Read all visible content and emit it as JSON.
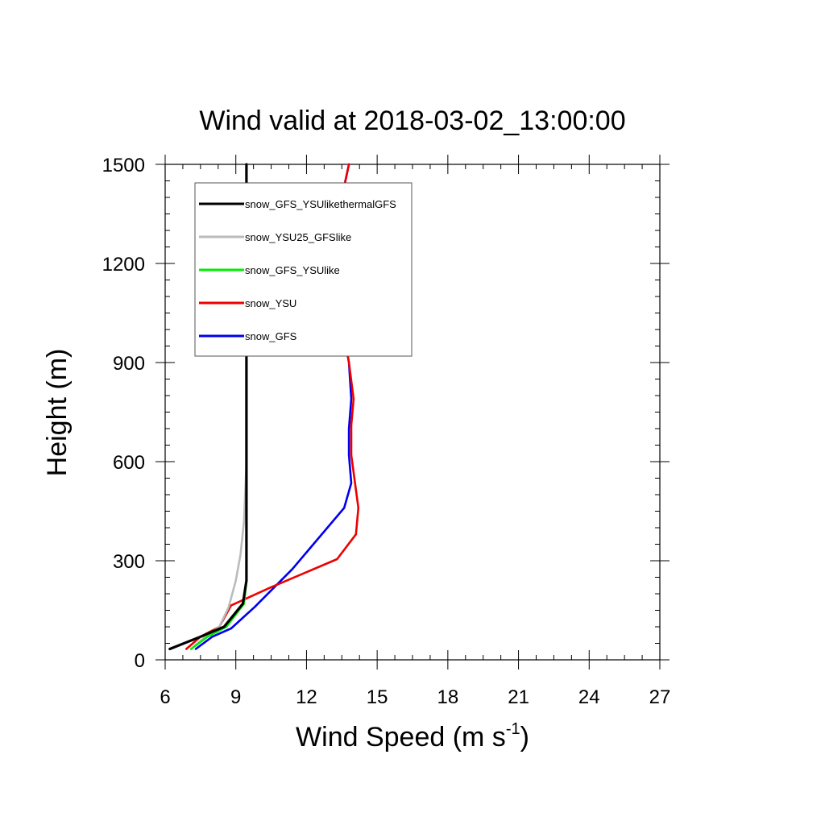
{
  "chart_data": {
    "type": "line",
    "title": "Wind valid at 2018-03-02_13:00:00",
    "xlabel": "Wind Speed (m s",
    "xlabel_sup": "-1",
    "xlabel_close": ")",
    "ylabel": "Height (m)",
    "xlim": [
      6,
      27
    ],
    "ylim": [
      0,
      1500
    ],
    "xticks": [
      6,
      9,
      12,
      15,
      18,
      21,
      24,
      27
    ],
    "yticks": [
      0,
      300,
      600,
      900,
      1200,
      1500
    ],
    "grid": false,
    "legend_position": "top-left",
    "series": [
      {
        "name": "snow_GFS_YSUlikethermalGFS",
        "color": "#000000",
        "points": [
          [
            6.2,
            33
          ],
          [
            7.5,
            70
          ],
          [
            8.5,
            100
          ],
          [
            9.3,
            170
          ],
          [
            9.45,
            240
          ],
          [
            9.45,
            400
          ],
          [
            9.45,
            600
          ],
          [
            9.45,
            900
          ],
          [
            9.45,
            1200
          ],
          [
            9.45,
            1500
          ]
        ]
      },
      {
        "name": "snow_YSU25_GFSlike",
        "color": "#bbbbbb",
        "points": [
          [
            7.1,
            33
          ],
          [
            7.7,
            70
          ],
          [
            8.3,
            100
          ],
          [
            8.7,
            160
          ],
          [
            9.0,
            240
          ],
          [
            9.2,
            320
          ],
          [
            9.35,
            420
          ],
          [
            9.45,
            600
          ],
          [
            9.45,
            900
          ],
          [
            9.45,
            1200
          ],
          [
            9.45,
            1500
          ]
        ]
      },
      {
        "name": "snow_GFS_YSUlike",
        "color": "#00ee00",
        "points": [
          [
            7.1,
            33
          ],
          [
            7.8,
            70
          ],
          [
            8.6,
            100
          ],
          [
            9.35,
            170
          ],
          [
            9.45,
            240
          ],
          [
            9.45,
            400
          ],
          [
            9.45,
            600
          ],
          [
            9.45,
            900
          ],
          [
            9.45,
            1200
          ],
          [
            9.45,
            1500
          ]
        ]
      },
      {
        "name": "snow_YSU",
        "color": "#ee0000",
        "points": [
          [
            6.9,
            33
          ],
          [
            7.5,
            70
          ],
          [
            8.3,
            100
          ],
          [
            8.8,
            165
          ],
          [
            10.5,
            220
          ],
          [
            13.3,
            305
          ],
          [
            14.1,
            380
          ],
          [
            14.2,
            460
          ],
          [
            13.9,
            620
          ],
          [
            13.9,
            710
          ],
          [
            14.0,
            790
          ],
          [
            13.8,
            900
          ],
          [
            13.3,
            1100
          ],
          [
            13.1,
            1200
          ],
          [
            13.2,
            1300
          ],
          [
            13.8,
            1500
          ]
        ]
      },
      {
        "name": "snow_GFS",
        "color": "#0000ee",
        "points": [
          [
            7.3,
            33
          ],
          [
            8.0,
            70
          ],
          [
            8.8,
            95
          ],
          [
            9.8,
            160
          ],
          [
            11.4,
            275
          ],
          [
            13.6,
            460
          ],
          [
            13.9,
            535
          ],
          [
            13.8,
            620
          ],
          [
            13.8,
            700
          ],
          [
            13.9,
            790
          ],
          [
            13.8,
            900
          ],
          [
            13.3,
            1100
          ],
          [
            13.1,
            1200
          ],
          [
            13.2,
            1300
          ],
          [
            13.8,
            1500
          ]
        ]
      }
    ]
  }
}
